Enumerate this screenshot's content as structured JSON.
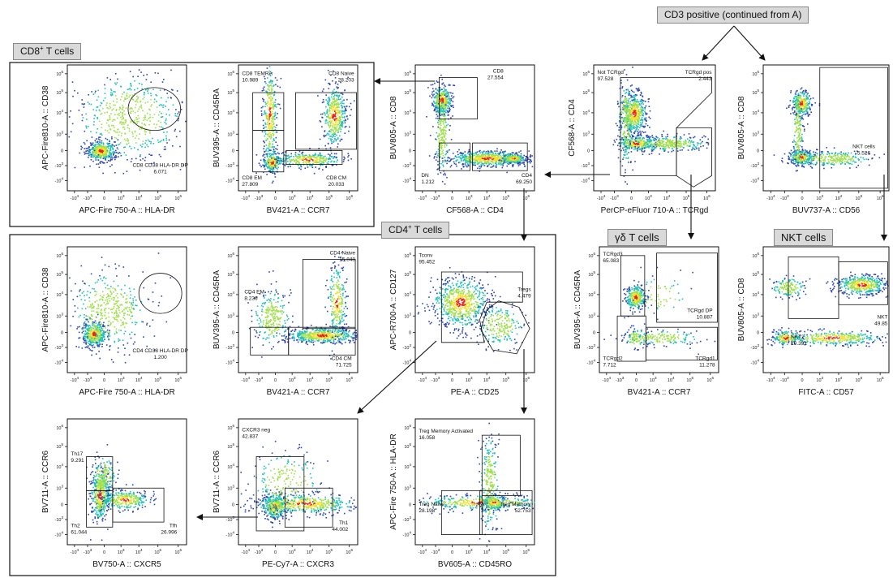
{
  "headers": {
    "cd3_positive": "CD3 positive (continued from A)",
    "cd8_t_cells_main": "CD8",
    "cd8_t_cells_sup": "+",
    "cd8_t_cells_tail": " T cells",
    "cd4_t_cells_main": "CD4",
    "cd4_t_cells_sup": "+",
    "cd4_t_cells_tail": " T cells",
    "gd_t_cells": "γδ T cells",
    "nkt_cells": "NKT cells"
  },
  "plots": [
    {
      "id": "cd4cd8",
      "x_label": "CF568-A :: CD4",
      "y_label": "BUV805-A :: CD8",
      "gates": [
        {
          "name": "CD8",
          "value": "27.554"
        },
        {
          "name": "DN",
          "value": "1.212"
        },
        {
          "name": "CD4",
          "value": "69.250"
        }
      ]
    },
    {
      "id": "tcrgd",
      "x_label": "PerCP-eFluor 710-A :: TCRgd",
      "y_label": "CF568-A :: CD4",
      "gates": [
        {
          "name": "Not TCRgd",
          "value": "97.528"
        },
        {
          "name": "TCRgd pos",
          "value": "2.443"
        }
      ]
    },
    {
      "id": "cd56",
      "x_label": "BUV737-A :: CD56",
      "y_label": "BUV805-A :: CD8",
      "gates": [
        {
          "name": "NKT cells",
          "value": "5.526"
        }
      ]
    },
    {
      "id": "cd8_hladr",
      "x_label": "APC-Fire 750-A :: HLA-DR",
      "y_label": "APC-Fire810-A :: CD38",
      "gates": [
        {
          "name": "CD8 CD38 HLA-DR DP",
          "value": "6.071"
        }
      ]
    },
    {
      "id": "cd8_ccr7",
      "x_label": "BV421-A :: CCR7",
      "y_label": "BUV395-A :: CD45RA",
      "gates": [
        {
          "name": "CD8 TEMRA",
          "value": "10.989"
        },
        {
          "name": "CD8 Naive",
          "value": "28.203"
        },
        {
          "name": "CD8 EM",
          "value": "27.809"
        },
        {
          "name": "CD8 CM",
          "value": "20.033"
        }
      ]
    },
    {
      "id": "cd4_hladr",
      "x_label": "APC-Fire 750-A :: HLA-DR",
      "y_label": "APC-Fire810-A :: CD38",
      "gates": [
        {
          "name": "CD4 CD38 HLA-DR DP",
          "value": "1.200"
        }
      ]
    },
    {
      "id": "cd4_ccr7",
      "x_label": "BV421-A :: CCR7",
      "y_label": "BUV395-A :: CD45RA",
      "gates": [
        {
          "name": "CD4 Naive",
          "value": "15.848"
        },
        {
          "name": "CD4 EM",
          "value": "8.236"
        },
        {
          "name": "CD4 CM",
          "value": "71.725"
        }
      ]
    },
    {
      "id": "cd25",
      "x_label": "PE-A :: CD25",
      "y_label": "APC-R700-A :: CD127",
      "gates": [
        {
          "name": "Tconv",
          "value": "95.452"
        },
        {
          "name": "Tregs",
          "value": "4.479"
        }
      ]
    },
    {
      "id": "gd_ccr7",
      "x_label": "BV421-A :: CCR7",
      "y_label": "BUV395-A :: CD45RA",
      "gates": [
        {
          "name": "TCRgd3",
          "value": "65.083"
        },
        {
          "name": "TCRgd DP",
          "value": "10.887"
        },
        {
          "name": "TCRgd2",
          "value": "7.712"
        },
        {
          "name": "TCRgd1",
          "value": "11.278"
        }
      ]
    },
    {
      "id": "nkt_cd57",
      "x_label": "FITC-A :: CD57",
      "y_label": "BUV805-A :: CD8",
      "gates": [
        {
          "name": "NKT",
          "value": "49.85"
        },
        {
          "name": "NKT2",
          "value": "10.391"
        }
      ]
    },
    {
      "id": "cxcr5",
      "x_label": "BV750-A :: CXCR5",
      "y_label": "BV711-A :: CCR6",
      "gates": [
        {
          "name": "Th17",
          "value": "9.291"
        },
        {
          "name": "Th2",
          "value": "61.044"
        },
        {
          "name": "Tfh",
          "value": "26.996"
        }
      ]
    },
    {
      "id": "cxcr3",
      "x_label": "PE-Cy7-A :: CXCR3",
      "y_label": "BV711-A :: CCR6",
      "gates": [
        {
          "name": "CXCR3 neg",
          "value": "42.837"
        },
        {
          "name": "Th1",
          "value": "44.002"
        }
      ]
    },
    {
      "id": "cd45ro",
      "x_label": "BV605-A :: CD45RO",
      "y_label": "APC-Fire 750-A :: HLA-DR",
      "gates": [
        {
          "name": "Treg Memory Activated",
          "value": "16.058"
        },
        {
          "name": "Treg Naive",
          "value": "28.198"
        },
        {
          "name": "Treg Memory",
          "value": "52.753"
        }
      ]
    }
  ],
  "axis_ticks": {
    "pow6": "6",
    "pow5": "5",
    "pow4": "4",
    "pow3": "3",
    "zero": "0",
    "neg3": "-3",
    "neg4": "-4",
    "base": "10",
    "neg": "-"
  },
  "colors": {
    "density_low": "#2c43b4",
    "density_mid": "#20c0b8",
    "density_midhigh": "#9fe04a",
    "density_high": "#f6e02c",
    "density_peak": "#e8231f",
    "gate_line": "#111111",
    "header_fill": "#d9d9d9",
    "arrow": "#111111"
  }
}
